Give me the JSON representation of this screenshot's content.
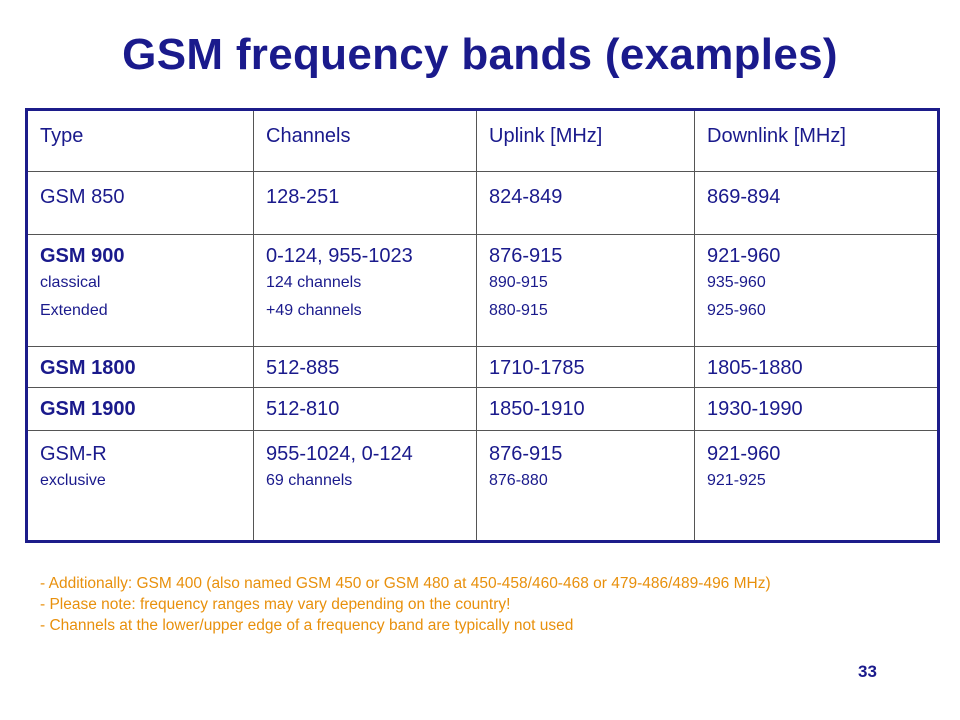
{
  "title": "GSM frequency bands (examples)",
  "table": {
    "headers": [
      "Type",
      "Channels",
      "Uplink [MHz]",
      "Downlink [MHz]"
    ],
    "rows": [
      {
        "type": "GSM 850",
        "channels": "128-251",
        "uplink": "824-849",
        "downlink": "869-894"
      },
      {
        "type": "GSM 900",
        "type_sub": [
          "classical",
          "Extended"
        ],
        "channels": "0-124, 955-1023",
        "channels_sub": [
          "124 channels",
          "+49 channels"
        ],
        "uplink": "876-915",
        "uplink_sub": [
          "890-915",
          "880-915"
        ],
        "downlink": "921-960",
        "downlink_sub": [
          "935-960",
          "925-960"
        ]
      },
      {
        "type": "GSM 1800",
        "channels": "512-885",
        "uplink": "1710-1785",
        "downlink": "1805-1880"
      },
      {
        "type": "GSM 1900",
        "channels": "512-810",
        "uplink": "1850-1910",
        "downlink": "1930-1990"
      },
      {
        "type": "GSM-R",
        "type_sub": [
          "exclusive"
        ],
        "channels": "955-1024, 0-124",
        "channels_sub": [
          "69 channels"
        ],
        "uplink": "876-915",
        "uplink_sub": [
          "876-880"
        ],
        "downlink": "921-960",
        "downlink_sub": [
          "921-925"
        ]
      }
    ]
  },
  "notes": [
    "- Additionally: GSM 400 (also named GSM 450 or GSM 480 at 450-458/460-468 or 479-486/489-496 MHz)",
    "- Please note: frequency ranges may vary depending on the country!",
    "- Channels at the lower/upper edge of a frequency band are typically not used"
  ],
  "page_number": "33",
  "colors": {
    "title": "#1a1a8c",
    "notes": "#e8900c",
    "table_border": "#1c1c8a"
  }
}
